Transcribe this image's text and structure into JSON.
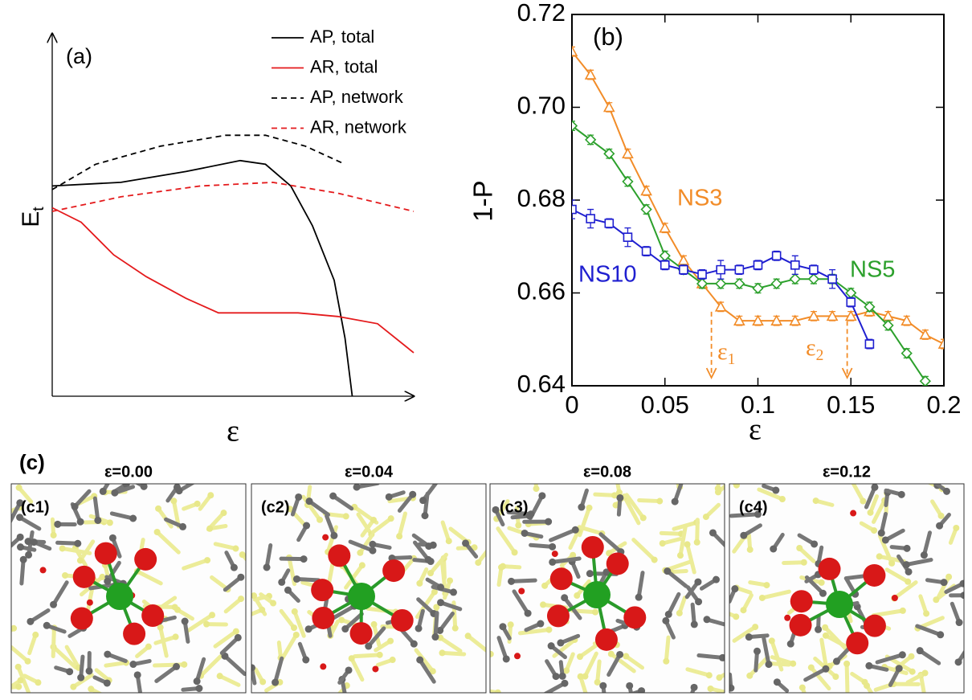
{
  "chart_data": [
    {
      "type": "line",
      "panel_label": "(a)",
      "xlabel": "ε",
      "ylabel": {
        "main": "E",
        "sub": "t"
      },
      "xlim": [
        0,
        1
      ],
      "ylim": [
        0,
        1
      ],
      "series": [
        {
          "name": "AP, total",
          "color": "#000000",
          "linestyle": "solid",
          "x": [
            0,
            0.19,
            0.37,
            0.52,
            0.59,
            0.66,
            0.72,
            0.78,
            0.81,
            0.83
          ],
          "values": [
            0.58,
            0.59,
            0.62,
            0.65,
            0.64,
            0.58,
            0.47,
            0.32,
            0.16,
            0
          ]
        },
        {
          "name": "AR, total",
          "color": "#e41a1c",
          "linestyle": "solid",
          "x": [
            0,
            0.08,
            0.17,
            0.26,
            0.37,
            0.46,
            0.59,
            0.68,
            0.79,
            0.9,
            1.0
          ],
          "values": [
            0.52,
            0.48,
            0.39,
            0.33,
            0.27,
            0.23,
            0.23,
            0.23,
            0.22,
            0.2,
            0.12
          ]
        },
        {
          "name": "AP, network",
          "color": "#000000",
          "linestyle": "dashed",
          "x": [
            0,
            0.12,
            0.3,
            0.48,
            0.59,
            0.7,
            0.81
          ],
          "values": [
            0.57,
            0.64,
            0.69,
            0.72,
            0.72,
            0.69,
            0.64
          ]
        },
        {
          "name": "AR, network",
          "color": "#e41a1c",
          "linestyle": "dashed",
          "x": [
            0,
            0.19,
            0.41,
            0.61,
            0.79,
            1.0
          ],
          "values": [
            0.51,
            0.55,
            0.58,
            0.59,
            0.56,
            0.51
          ]
        }
      ]
    },
    {
      "type": "errorline",
      "panel_label": "(b)",
      "xlabel": "ε",
      "ylabel": "1-P",
      "xlim": [
        0,
        0.2
      ],
      "ylim": [
        0.64,
        0.72
      ],
      "xticks": [
        0,
        0.05,
        0.1,
        0.15,
        0.2
      ],
      "yticks": [
        0.64,
        0.66,
        0.68,
        {
          "value": 0.7,
          "label": "0.70"
        },
        0.72
      ],
      "x": [
        0,
        0.01,
        0.02,
        0.03,
        0.04,
        0.05,
        0.06,
        0.07,
        0.08,
        0.09,
        0.1,
        0.11,
        0.12,
        0.13,
        0.14,
        0.15,
        0.16,
        0.17,
        0.18,
        0.19,
        0.2
      ],
      "series": [
        {
          "name": "NS3",
          "color": "#f28c28",
          "marker": "triangle",
          "values": [
            0.712,
            0.707,
            0.7,
            0.69,
            0.682,
            0.674,
            0.667,
            0.662,
            0.657,
            0.654,
            0.654,
            0.654,
            0.654,
            0.655,
            0.655,
            0.655,
            0.656,
            0.655,
            0.654,
            0.651,
            0.649
          ],
          "errors": [
            0.001,
            0.001,
            0.001,
            0.001,
            0.001,
            0.001,
            0.001,
            0.001,
            0.001,
            0.001,
            0.001,
            0.001,
            0.001,
            0.001,
            0.001,
            0.001,
            0.001,
            0.001,
            0.001,
            0.001,
            0.001
          ]
        },
        {
          "name": "NS5",
          "color": "#2ca02c",
          "marker": "diamond",
          "values": [
            0.696,
            0.693,
            0.69,
            0.684,
            0.678,
            0.668,
            0.665,
            0.662,
            0.662,
            0.662,
            0.661,
            0.662,
            0.663,
            0.663,
            0.663,
            0.66,
            0.657,
            0.653,
            0.647,
            0.641,
            null
          ],
          "errors": [
            0.001,
            0.001,
            0.001,
            0.001,
            0.001,
            0.001,
            0.001,
            0.001,
            0.001,
            0.001,
            0.001,
            0.001,
            0.001,
            0.001,
            0.001,
            0.001,
            0.001,
            0.001,
            0.001,
            0.001,
            null
          ]
        },
        {
          "name": "NS10",
          "color": "#1f1fd0",
          "marker": "square",
          "values": [
            0.678,
            0.676,
            0.675,
            0.672,
            0.669,
            0.666,
            0.665,
            0.664,
            0.665,
            0.665,
            0.666,
            0.668,
            0.666,
            0.665,
            0.663,
            0.658,
            0.649,
            null,
            null,
            null,
            null
          ],
          "errors": [
            0.002,
            0.002,
            0.001,
            0.002,
            0.001,
            0.001,
            0.001,
            0.001,
            0.002,
            0.001,
            0.001,
            0.001,
            0.002,
            0.001,
            0.002,
            0.001,
            0.001,
            null,
            null,
            null,
            null
          ]
        }
      ],
      "markers": [
        {
          "label": {
            "main": "ε",
            "sub": "1"
          },
          "x": 0.075,
          "y": 0.657,
          "color": "#f28c28"
        },
        {
          "label": {
            "main": "ε",
            "sub": "2"
          },
          "x": 0.148,
          "y": 0.655,
          "color": "#f28c28"
        }
      ]
    }
  ],
  "panel_c": {
    "label": "(c)",
    "frames": [
      {
        "title": "ε=0.00",
        "label": "(c1)"
      },
      {
        "title": "ε=0.04",
        "label": "(c2)"
      },
      {
        "title": "ε=0.08",
        "label": "(c3)"
      },
      {
        "title": "ε=0.12",
        "label": "(c4)"
      }
    ]
  }
}
